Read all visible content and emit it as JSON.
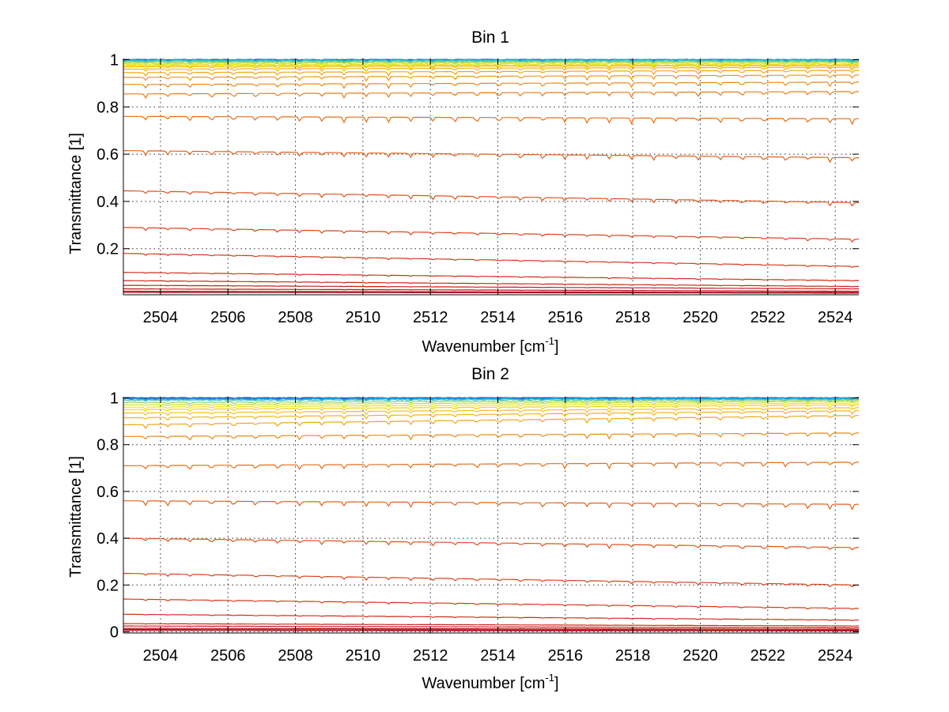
{
  "chart_data": [
    {
      "type": "line",
      "title": "Bin 1",
      "xlabel": "Wavenumber [cm",
      "xlabel_sup": "-1",
      "xlabel_suffix": "]",
      "ylabel": "Transmittance [1]",
      "xlim": [
        2502.9,
        2524.7
      ],
      "ylim": [
        0.005,
        1.005
      ],
      "xticks": [
        "2504",
        "2506",
        "2508",
        "2510",
        "2512",
        "2514",
        "2516",
        "2518",
        "2520",
        "2522",
        "2524"
      ],
      "yticks": [
        "0.2",
        "0.4",
        "0.6",
        "0.8",
        "1"
      ],
      "grid": true,
      "colormap": "jet",
      "series": [
        {
          "start": 1.0,
          "end": 1.0,
          "color": "#1f4fb5",
          "dip": 0.003
        },
        {
          "start": 0.998,
          "end": 0.999,
          "color": "#1aa0d8",
          "dip": 0.004
        },
        {
          "start": 0.995,
          "end": 0.996,
          "color": "#3ec6b8",
          "dip": 0.005
        },
        {
          "start": 0.99,
          "end": 0.992,
          "color": "#8fd16a",
          "dip": 0.006
        },
        {
          "start": 0.985,
          "end": 0.988,
          "color": "#c8df3a",
          "dip": 0.007
        },
        {
          "start": 0.98,
          "end": 0.982,
          "color": "#e8e51a",
          "dip": 0.008
        },
        {
          "start": 0.975,
          "end": 0.978,
          "color": "#f2d11a",
          "dip": 0.008
        },
        {
          "start": 0.97,
          "end": 0.975,
          "color": "#f5c01a",
          "dip": 0.009
        },
        {
          "start": 0.96,
          "end": 0.968,
          "color": "#f5b21a",
          "dip": 0.01
        },
        {
          "start": 0.945,
          "end": 0.955,
          "color": "#f3a41a",
          "dip": 0.012
        },
        {
          "start": 0.925,
          "end": 0.935,
          "color": "#f0961a",
          "dip": 0.013
        },
        {
          "start": 0.895,
          "end": 0.905,
          "color": "#ec881a",
          "dip": 0.014
        },
        {
          "start": 0.855,
          "end": 0.865,
          "color": "#e97c1a",
          "dip": 0.016
        },
        {
          "start": 0.76,
          "end": 0.75,
          "color": "#e56e1a",
          "dip": 0.018
        },
        {
          "start": 0.615,
          "end": 0.585,
          "color": "#e2601a",
          "dip": 0.016
        },
        {
          "start": 0.445,
          "end": 0.395,
          "color": "#de521a",
          "dip": 0.013
        },
        {
          "start": 0.29,
          "end": 0.24,
          "color": "#da441a",
          "dip": 0.009
        },
        {
          "start": 0.18,
          "end": 0.125,
          "color": "#d6381a",
          "dip": 0.005
        },
        {
          "start": 0.1,
          "end": 0.065,
          "color": "#d22e1a",
          "dip": 0.003
        },
        {
          "start": 0.065,
          "end": 0.04,
          "color": "#cc241a",
          "dip": 0.002
        },
        {
          "start": 0.045,
          "end": 0.03,
          "color": "#c61c1a",
          "dip": 0.001
        },
        {
          "start": 0.03,
          "end": 0.02,
          "color": "#be141a",
          "dip": 0.001
        },
        {
          "start": 0.02,
          "end": 0.015,
          "color": "#b40e1a",
          "dip": 0.0
        },
        {
          "start": 0.015,
          "end": 0.012,
          "color": "#a8081a",
          "dip": 0.0
        }
      ]
    },
    {
      "type": "line",
      "title": "Bin 2",
      "xlabel": "Wavenumber [cm",
      "xlabel_sup": "-1",
      "xlabel_suffix": "]",
      "ylabel": "Transmittance [1]",
      "xlim": [
        2502.9,
        2524.7
      ],
      "ylim": [
        -0.005,
        1.005
      ],
      "xticks": [
        "2504",
        "2506",
        "2508",
        "2510",
        "2512",
        "2514",
        "2516",
        "2518",
        "2520",
        "2522",
        "2524"
      ],
      "yticks": [
        "0",
        "0.2",
        "0.4",
        "0.6",
        "0.8",
        "1"
      ],
      "grid": true,
      "colormap": "jet",
      "series": [
        {
          "start": 1.0,
          "end": 1.0,
          "color": "#1f4fb5",
          "dip": 0.003
        },
        {
          "start": 0.996,
          "end": 0.998,
          "color": "#1aa0d8",
          "dip": 0.004
        },
        {
          "start": 0.99,
          "end": 0.994,
          "color": "#3ec6b8",
          "dip": 0.005
        },
        {
          "start": 0.98,
          "end": 0.99,
          "color": "#8fd16a",
          "dip": 0.006
        },
        {
          "start": 0.97,
          "end": 0.985,
          "color": "#c8df3a",
          "dip": 0.007
        },
        {
          "start": 0.96,
          "end": 0.978,
          "color": "#e8e51a",
          "dip": 0.008
        },
        {
          "start": 0.95,
          "end": 0.97,
          "color": "#f2d11a",
          "dip": 0.009
        },
        {
          "start": 0.935,
          "end": 0.958,
          "color": "#f5c01a",
          "dip": 0.01
        },
        {
          "start": 0.915,
          "end": 0.945,
          "color": "#f5b21a",
          "dip": 0.011
        },
        {
          "start": 0.885,
          "end": 0.925,
          "color": "#f3a41a",
          "dip": 0.013
        },
        {
          "start": 0.835,
          "end": 0.85,
          "color": "#ec881a",
          "dip": 0.015
        },
        {
          "start": 0.71,
          "end": 0.725,
          "color": "#e56e1a",
          "dip": 0.018
        },
        {
          "start": 0.56,
          "end": 0.545,
          "color": "#e2601a",
          "dip": 0.017
        },
        {
          "start": 0.4,
          "end": 0.36,
          "color": "#de521a",
          "dip": 0.013
        },
        {
          "start": 0.25,
          "end": 0.2,
          "color": "#da441a",
          "dip": 0.009
        },
        {
          "start": 0.14,
          "end": 0.1,
          "color": "#d6381a",
          "dip": 0.005
        },
        {
          "start": 0.075,
          "end": 0.05,
          "color": "#d22e1a",
          "dip": 0.003
        },
        {
          "start": 0.035,
          "end": 0.025,
          "color": "#cc241a",
          "dip": 0.001
        },
        {
          "start": 0.025,
          "end": 0.017,
          "color": "#c61c1a",
          "dip": 0.001
        },
        {
          "start": 0.015,
          "end": 0.011,
          "color": "#be141a",
          "dip": 0.0
        },
        {
          "start": 0.01,
          "end": 0.007,
          "color": "#b40e1a",
          "dip": 0.0
        },
        {
          "start": 0.006,
          "end": 0.004,
          "color": "#a8081a",
          "dip": 0.0
        }
      ]
    }
  ]
}
